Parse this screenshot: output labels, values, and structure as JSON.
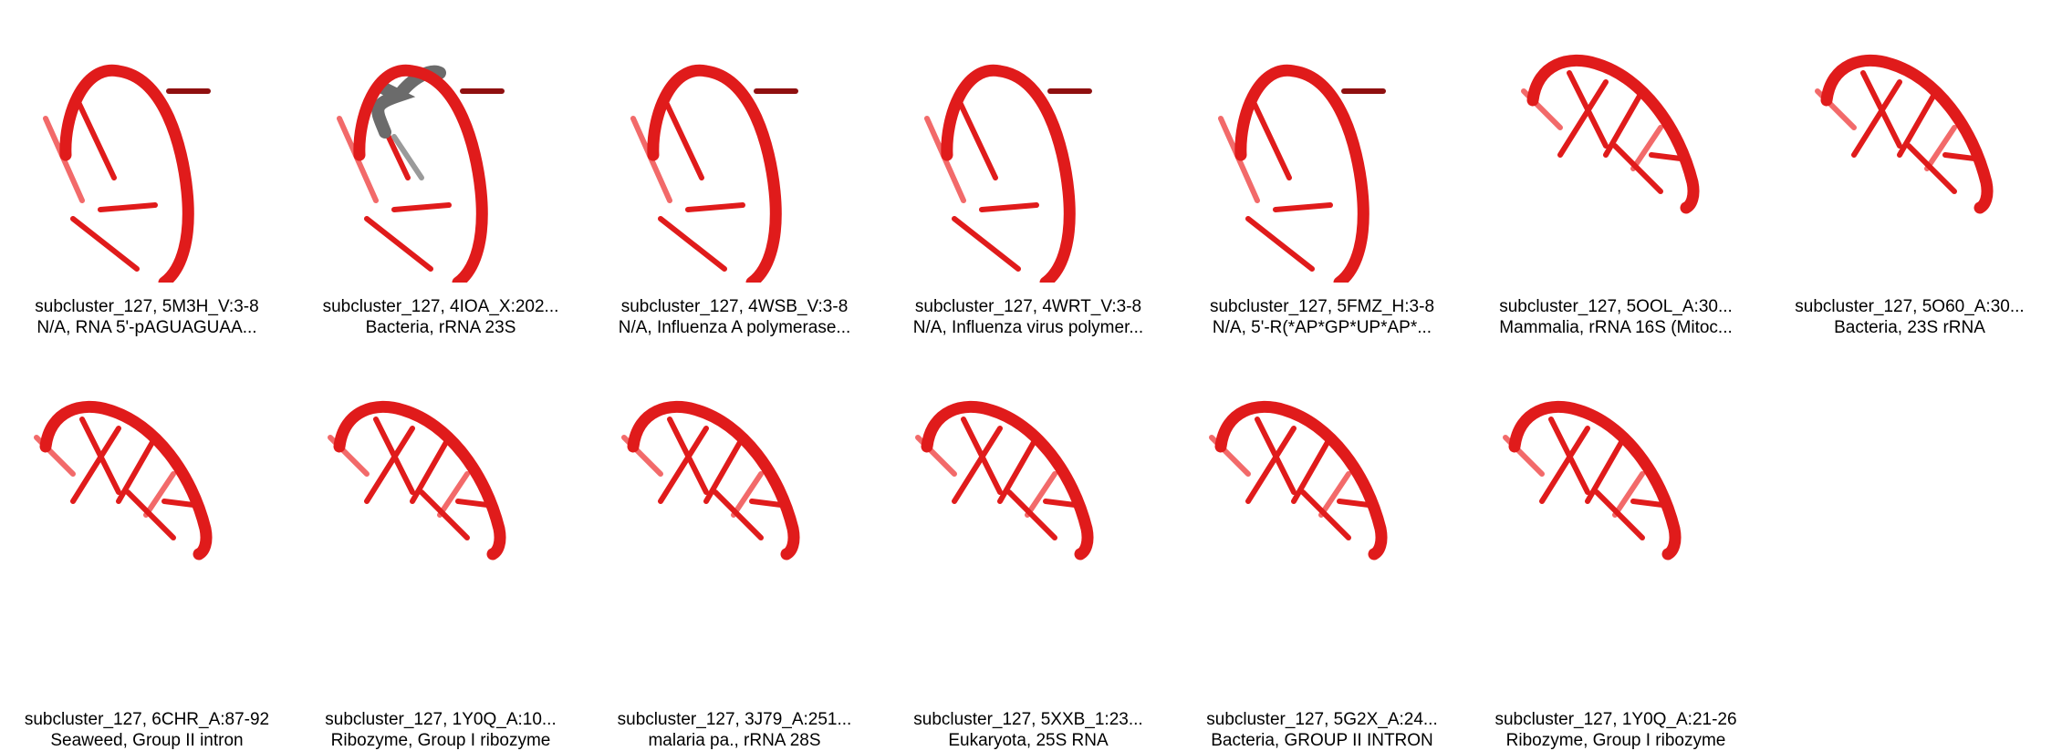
{
  "colors": {
    "strand": "#e01b1b",
    "strand_light": "#f26a6a",
    "strand_dark": "#8f1010",
    "gray": "#6b6b6b"
  },
  "tiles": [
    {
      "id": "subcluster_127, 5M3H_V:3-8",
      "desc": "N/A, RNA 5'-pAGUAGUAA...",
      "style": "tall"
    },
    {
      "id": "subcluster_127, 4IOA_X:202...",
      "desc": "Bacteria, rRNA 23S",
      "style": "tall-gray"
    },
    {
      "id": "subcluster_127, 4WSB_V:3-8",
      "desc": "N/A, Influenza A polymerase...",
      "style": "tall"
    },
    {
      "id": "subcluster_127, 4WRT_V:3-8",
      "desc": "N/A, Influenza virus polymer...",
      "style": "tall"
    },
    {
      "id": "subcluster_127, 5FMZ_H:3-8",
      "desc": "N/A, 5'-R(*AP*GP*UP*AP*...",
      "style": "tall"
    },
    {
      "id": "subcluster_127, 5OOL_A:30...",
      "desc": "Mammalia, rRNA 16S (Mitoc...",
      "style": "arc"
    },
    {
      "id": "subcluster_127, 5O60_A:30...",
      "desc": "Bacteria, 23S rRNA",
      "style": "arc"
    },
    {
      "id": "subcluster_127, 6CHR_A:87-92",
      "desc": "Seaweed, Group II intron",
      "style": "arc"
    },
    {
      "id": "subcluster_127, 1Y0Q_A:10...",
      "desc": "Ribozyme, Group I ribozyme",
      "style": "arc"
    },
    {
      "id": "subcluster_127, 3J79_A:251...",
      "desc": "malaria pa., rRNA 28S",
      "style": "arc"
    },
    {
      "id": "subcluster_127, 5XXB_1:23...",
      "desc": "Eukaryota, 25S RNA",
      "style": "arc"
    },
    {
      "id": "subcluster_127, 5G2X_A:24...",
      "desc": "Bacteria, GROUP II INTRON",
      "style": "arc"
    },
    {
      "id": "subcluster_127, 1Y0Q_A:21-26",
      "desc": "Ribozyme, Group I ribozyme",
      "style": "arc"
    }
  ]
}
